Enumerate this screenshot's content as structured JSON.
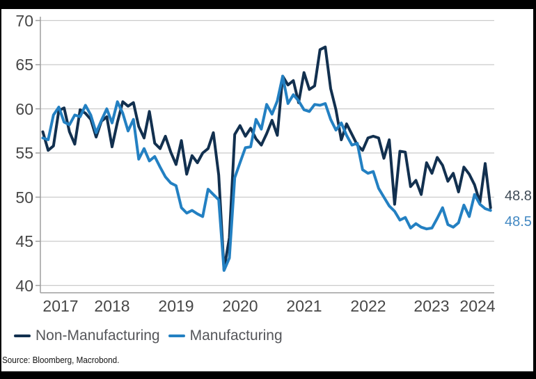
{
  "source_note": "Source: Bloomberg, Macrobond.",
  "chart_data": {
    "type": "line",
    "title": "",
    "frequency": "monthly",
    "x_start": "2017-06",
    "x_end": "2024-06",
    "x_tick_years": [
      "2017",
      "2018",
      "2019",
      "2020",
      "2021",
      "2022",
      "2023",
      "2024"
    ],
    "y_ticks": [
      40,
      45,
      50,
      55,
      60,
      65,
      70
    ],
    "ylim": [
      39.2,
      70.5
    ],
    "grid": "horizontal",
    "legend_position": "bottom",
    "colors": {
      "grid": "#cbcbcb",
      "axis": "#9e9e9e",
      "tick_text": "#474747"
    },
    "series": [
      {
        "name": "Non-Manufacturing",
        "color": "#12304F",
        "end_label": {
          "text": "48.8",
          "color": "#3E4A55"
        },
        "values": [
          57.4,
          55.3,
          55.8,
          59.8,
          60.1,
          57.4,
          56.0,
          59.9,
          59.5,
          58.8,
          56.8,
          58.6,
          59.1,
          55.7,
          58.5,
          60.8,
          60.3,
          60.7,
          58.0,
          56.7,
          59.7,
          56.1,
          55.5,
          56.9,
          55.1,
          53.7,
          56.4,
          52.6,
          54.7,
          53.9,
          55.0,
          55.5,
          57.3,
          52.5,
          41.8,
          45.4,
          57.1,
          58.1,
          56.9,
          57.8,
          56.6,
          55.9,
          57.2,
          58.7,
          57.0,
          63.7,
          62.7,
          63.2,
          60.7,
          64.1,
          62.2,
          62.6,
          66.7,
          67.0,
          62.3,
          59.9,
          56.5,
          58.3,
          57.1,
          55.9,
          55.3,
          56.7,
          56.9,
          56.7,
          54.4,
          56.5,
          49.2,
          55.2,
          55.1,
          51.2,
          51.9,
          50.3,
          53.9,
          52.7,
          54.5,
          53.6,
          51.8,
          52.7,
          50.6,
          53.4,
          52.6,
          51.4,
          49.4,
          53.8,
          48.8
        ]
      },
      {
        "name": "Manufacturing",
        "color": "#2380C2",
        "end_label": {
          "text": "48.5",
          "color": "#4288C2"
        },
        "values": [
          56.7,
          56.5,
          59.3,
          60.2,
          58.5,
          58.2,
          59.3,
          59.1,
          60.4,
          59.3,
          57.3,
          58.7,
          60.0,
          58.4,
          60.8,
          59.5,
          57.5,
          58.8,
          54.3,
          55.5,
          54.1,
          54.6,
          53.4,
          52.3,
          51.6,
          51.3,
          48.8,
          48.2,
          48.5,
          48.1,
          47.8,
          50.9,
          50.3,
          49.7,
          41.7,
          43.1,
          52.2,
          53.9,
          55.6,
          55.7,
          58.8,
          57.7,
          60.5,
          59.4,
          60.9,
          63.7,
          60.6,
          61.6,
          60.9,
          59.9,
          59.7,
          60.5,
          60.4,
          60.6,
          58.8,
          57.6,
          58.4,
          57.0,
          55.9,
          56.1,
          53.1,
          52.7,
          52.9,
          51.0,
          50.0,
          49.0,
          48.4,
          47.4,
          47.7,
          46.5,
          47.0,
          46.6,
          46.4,
          46.5,
          47.6,
          48.8,
          46.9,
          46.6,
          47.1,
          49.1,
          47.8,
          50.3,
          49.2,
          48.7,
          48.5
        ]
      }
    ]
  }
}
